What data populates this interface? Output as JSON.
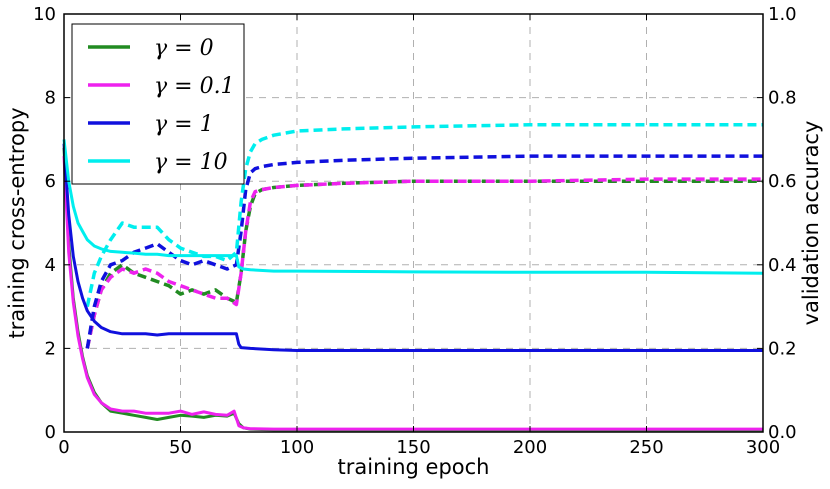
{
  "chart_data": {
    "type": "line",
    "xlabel": "training epoch",
    "ylabel_left": "training cross-entropy",
    "ylabel_right": "validation accuracy",
    "xlim": [
      0,
      300
    ],
    "ylim_left": [
      0,
      10
    ],
    "ylim_right": [
      0.0,
      1.0
    ],
    "x_ticks": [
      "0",
      "50",
      "100",
      "150",
      "200",
      "250",
      "300"
    ],
    "y_ticks_left": [
      "0",
      "2",
      "4",
      "6",
      "8",
      "10"
    ],
    "y_ticks_right": [
      "0.0",
      "0.2",
      "0.4",
      "0.6",
      "0.8",
      "1.0"
    ],
    "grid": true,
    "legend_position": "top-left",
    "series": [
      {
        "name": "γ = 0",
        "color": "#228b22",
        "train_loss": {
          "x": [
            0,
            2,
            4,
            6,
            8,
            10,
            13,
            16,
            20,
            25,
            30,
            35,
            40,
            45,
            50,
            55,
            60,
            65,
            70,
            73,
            75,
            77,
            80,
            90,
            100,
            150,
            200,
            250,
            300
          ],
          "y": [
            6.8,
            4.5,
            3.2,
            2.4,
            1.8,
            1.35,
            0.95,
            0.7,
            0.5,
            0.45,
            0.4,
            0.35,
            0.3,
            0.35,
            0.4,
            0.38,
            0.35,
            0.4,
            0.38,
            0.45,
            0.2,
            0.1,
            0.07,
            0.05,
            0.05,
            0.05,
            0.05,
            0.05,
            0.05
          ]
        },
        "val_acc": {
          "x": [
            10,
            13,
            16,
            20,
            25,
            30,
            35,
            40,
            45,
            50,
            55,
            60,
            65,
            70,
            74,
            76,
            78,
            80,
            82,
            85,
            90,
            100,
            120,
            150,
            200,
            250,
            300
          ],
          "y": [
            0.2,
            0.28,
            0.34,
            0.38,
            0.4,
            0.38,
            0.37,
            0.36,
            0.35,
            0.33,
            0.34,
            0.33,
            0.34,
            0.32,
            0.31,
            0.38,
            0.48,
            0.54,
            0.57,
            0.58,
            0.585,
            0.59,
            0.595,
            0.6,
            0.6,
            0.6,
            0.6
          ]
        }
      },
      {
        "name": "γ = 0.1",
        "color": "#ee22ee",
        "train_loss": {
          "x": [
            0,
            2,
            4,
            6,
            8,
            10,
            13,
            16,
            20,
            25,
            30,
            35,
            40,
            45,
            50,
            55,
            60,
            65,
            70,
            73,
            75,
            77,
            80,
            90,
            100,
            150,
            200,
            250,
            300
          ],
          "y": [
            6.6,
            4.3,
            3.1,
            2.3,
            1.75,
            1.3,
            0.9,
            0.7,
            0.55,
            0.5,
            0.5,
            0.45,
            0.45,
            0.45,
            0.5,
            0.42,
            0.48,
            0.42,
            0.4,
            0.5,
            0.15,
            0.1,
            0.08,
            0.07,
            0.07,
            0.07,
            0.07,
            0.07,
            0.07
          ]
        },
        "val_acc": {
          "x": [
            10,
            13,
            16,
            20,
            25,
            30,
            35,
            40,
            45,
            50,
            55,
            60,
            65,
            70,
            74,
            76,
            78,
            80,
            82,
            85,
            90,
            100,
            120,
            150,
            200,
            250,
            300
          ],
          "y": [
            0.2,
            0.28,
            0.34,
            0.37,
            0.39,
            0.38,
            0.39,
            0.38,
            0.36,
            0.35,
            0.34,
            0.33,
            0.32,
            0.32,
            0.305,
            0.38,
            0.48,
            0.55,
            0.575,
            0.58,
            0.585,
            0.59,
            0.595,
            0.6,
            0.6,
            0.605,
            0.605
          ]
        }
      },
      {
        "name": "γ = 1",
        "color": "#1010dd",
        "train_loss": {
          "x": [
            0,
            2,
            4,
            6,
            8,
            10,
            13,
            16,
            20,
            25,
            30,
            35,
            40,
            45,
            50,
            55,
            60,
            65,
            70,
            74,
            75,
            76,
            80,
            90,
            100,
            150,
            200,
            250,
            300
          ],
          "y": [
            6.9,
            5.2,
            4.2,
            3.6,
            3.2,
            2.9,
            2.65,
            2.5,
            2.4,
            2.35,
            2.35,
            2.35,
            2.32,
            2.35,
            2.35,
            2.35,
            2.35,
            2.35,
            2.35,
            2.35,
            2.1,
            2.02,
            2.0,
            1.97,
            1.95,
            1.95,
            1.95,
            1.95,
            1.95
          ]
        },
        "val_acc": {
          "x": [
            10,
            13,
            16,
            20,
            25,
            30,
            35,
            40,
            45,
            50,
            55,
            60,
            65,
            70,
            74,
            76,
            78,
            80,
            82,
            85,
            90,
            100,
            120,
            150,
            200,
            250,
            300
          ],
          "y": [
            0.2,
            0.3,
            0.36,
            0.4,
            0.41,
            0.43,
            0.44,
            0.45,
            0.43,
            0.41,
            0.4,
            0.41,
            0.4,
            0.39,
            0.4,
            0.48,
            0.58,
            0.62,
            0.63,
            0.635,
            0.64,
            0.645,
            0.65,
            0.655,
            0.66,
            0.66,
            0.66
          ]
        }
      },
      {
        "name": "γ = 10",
        "color": "#00eeee",
        "train_loss": {
          "x": [
            0,
            2,
            4,
            6,
            8,
            10,
            13,
            16,
            20,
            25,
            30,
            35,
            40,
            45,
            50,
            55,
            60,
            65,
            70,
            74,
            75,
            77,
            80,
            90,
            100,
            150,
            200,
            250,
            300
          ],
          "y": [
            7.0,
            6.0,
            5.4,
            5.0,
            4.8,
            4.6,
            4.45,
            4.38,
            4.32,
            4.3,
            4.28,
            4.25,
            4.25,
            4.22,
            4.22,
            4.22,
            4.22,
            4.22,
            4.22,
            4.22,
            3.95,
            3.9,
            3.88,
            3.85,
            3.85,
            3.83,
            3.82,
            3.82,
            3.8
          ]
        },
        "val_acc": {
          "x": [
            10,
            13,
            16,
            20,
            25,
            30,
            35,
            40,
            45,
            50,
            55,
            60,
            65,
            70,
            74,
            76,
            78,
            80,
            82,
            85,
            90,
            100,
            120,
            150,
            200,
            250,
            300
          ],
          "y": [
            0.3,
            0.38,
            0.42,
            0.46,
            0.5,
            0.49,
            0.49,
            0.49,
            0.46,
            0.44,
            0.43,
            0.42,
            0.42,
            0.41,
            0.43,
            0.55,
            0.63,
            0.67,
            0.69,
            0.7,
            0.71,
            0.72,
            0.725,
            0.73,
            0.735,
            0.735,
            0.735
          ]
        }
      }
    ]
  }
}
